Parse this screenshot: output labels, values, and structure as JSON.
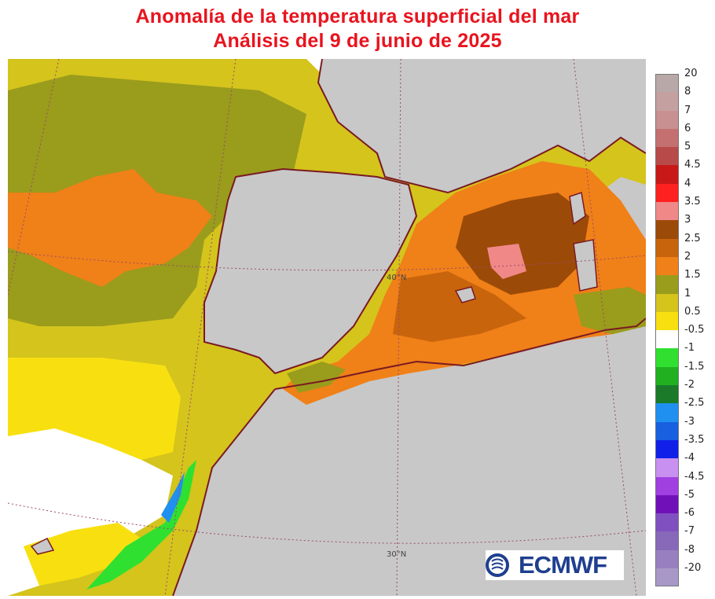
{
  "title": {
    "line1": "Anomalía de la temperatura superficial del mar",
    "line2": "Análisis del 9 de junio de 2025"
  },
  "map": {
    "region": "North-east Atlantic, Iberian Peninsula and Western Mediterranean",
    "projection": "conic",
    "grid_labels": [
      "40°N",
      "30°N"
    ],
    "land_color": "#c8c8c8",
    "coast_color": "#7a1a22",
    "gridline_color": "#9a4a6a"
  },
  "legend": {
    "items": [
      {
        "label": "20",
        "color": "#b8a8a8"
      },
      {
        "label": "8",
        "color": "#c4a0a0"
      },
      {
        "label": "7",
        "color": "#c89090"
      },
      {
        "label": "6",
        "color": "#c47070"
      },
      {
        "label": "5",
        "color": "#b84a4a"
      },
      {
        "label": "4.5",
        "color": "#c81818"
      },
      {
        "label": "4",
        "color": "#ff2020"
      },
      {
        "label": "3.5",
        "color": "#f08888"
      },
      {
        "label": "3",
        "color": "#9c4a08"
      },
      {
        "label": "2.5",
        "color": "#c8640c"
      },
      {
        "label": "2",
        "color": "#f08018"
      },
      {
        "label": "1.5",
        "color": "#9a9c1c"
      },
      {
        "label": "1",
        "color": "#d4c41c"
      },
      {
        "label": "0.5",
        "color": "#f8e010"
      },
      {
        "label": "-0.5",
        "color": "#ffffff"
      },
      {
        "label": "-1",
        "color": "#30e030"
      },
      {
        "label": "-1.5",
        "color": "#20b020"
      },
      {
        "label": "-2",
        "color": "#1a7a2a"
      },
      {
        "label": "-2.5",
        "color": "#2090f0"
      },
      {
        "label": "-3",
        "color": "#1860e0"
      },
      {
        "label": "-3.5",
        "color": "#1020e8"
      },
      {
        "label": "-4",
        "color": "#c890f0"
      },
      {
        "label": "-4.5",
        "color": "#a040e0"
      },
      {
        "label": "-5",
        "color": "#7010b8"
      },
      {
        "label": "-6",
        "color": "#8050c0"
      },
      {
        "label": "-7",
        "color": "#8868b8"
      },
      {
        "label": "-8",
        "color": "#9880c0"
      },
      {
        "label": "-20",
        "color": "#a898c8"
      }
    ],
    "bottom_label": "-20"
  },
  "logo": {
    "text": "ECMWF",
    "icon": "ecmwf-logo-icon",
    "color": "#1f3f8f"
  }
}
